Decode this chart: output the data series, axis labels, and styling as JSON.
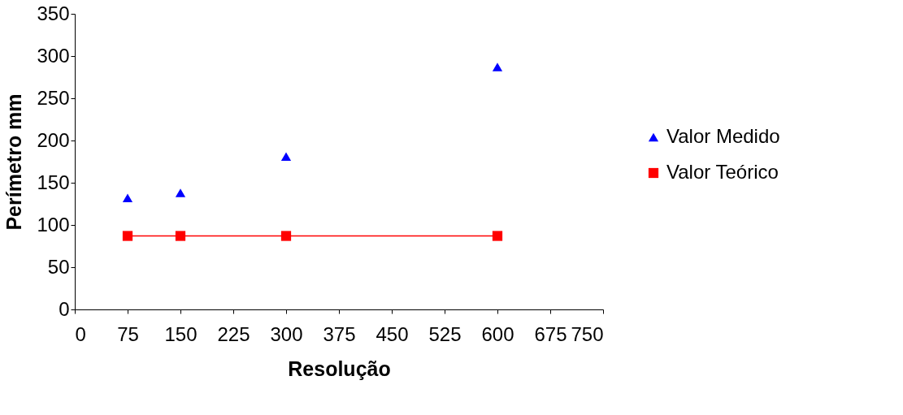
{
  "chart_data": {
    "type": "scatter",
    "xlabel": "Resolução",
    "ylabel": "Perímetro mm",
    "x": [
      75,
      150,
      300,
      600
    ],
    "series": [
      {
        "name": "Valor Medido",
        "color": "#0000ff",
        "values": [
          132,
          138,
          181,
          287
        ],
        "marker": "triangle"
      },
      {
        "name": "Valor Teórico",
        "color": "#ff0000",
        "values": [
          87,
          87,
          87,
          87
        ],
        "type": "line",
        "marker": "square"
      }
    ],
    "xlim": [
      0,
      750
    ],
    "xticks": [
      0,
      75,
      150,
      225,
      300,
      375,
      450,
      525,
      600,
      675,
      750
    ],
    "ylim": [
      0,
      350
    ],
    "yticks": [
      0,
      50,
      100,
      150,
      200,
      250,
      300,
      350
    ],
    "grid": false,
    "legend": "right"
  }
}
